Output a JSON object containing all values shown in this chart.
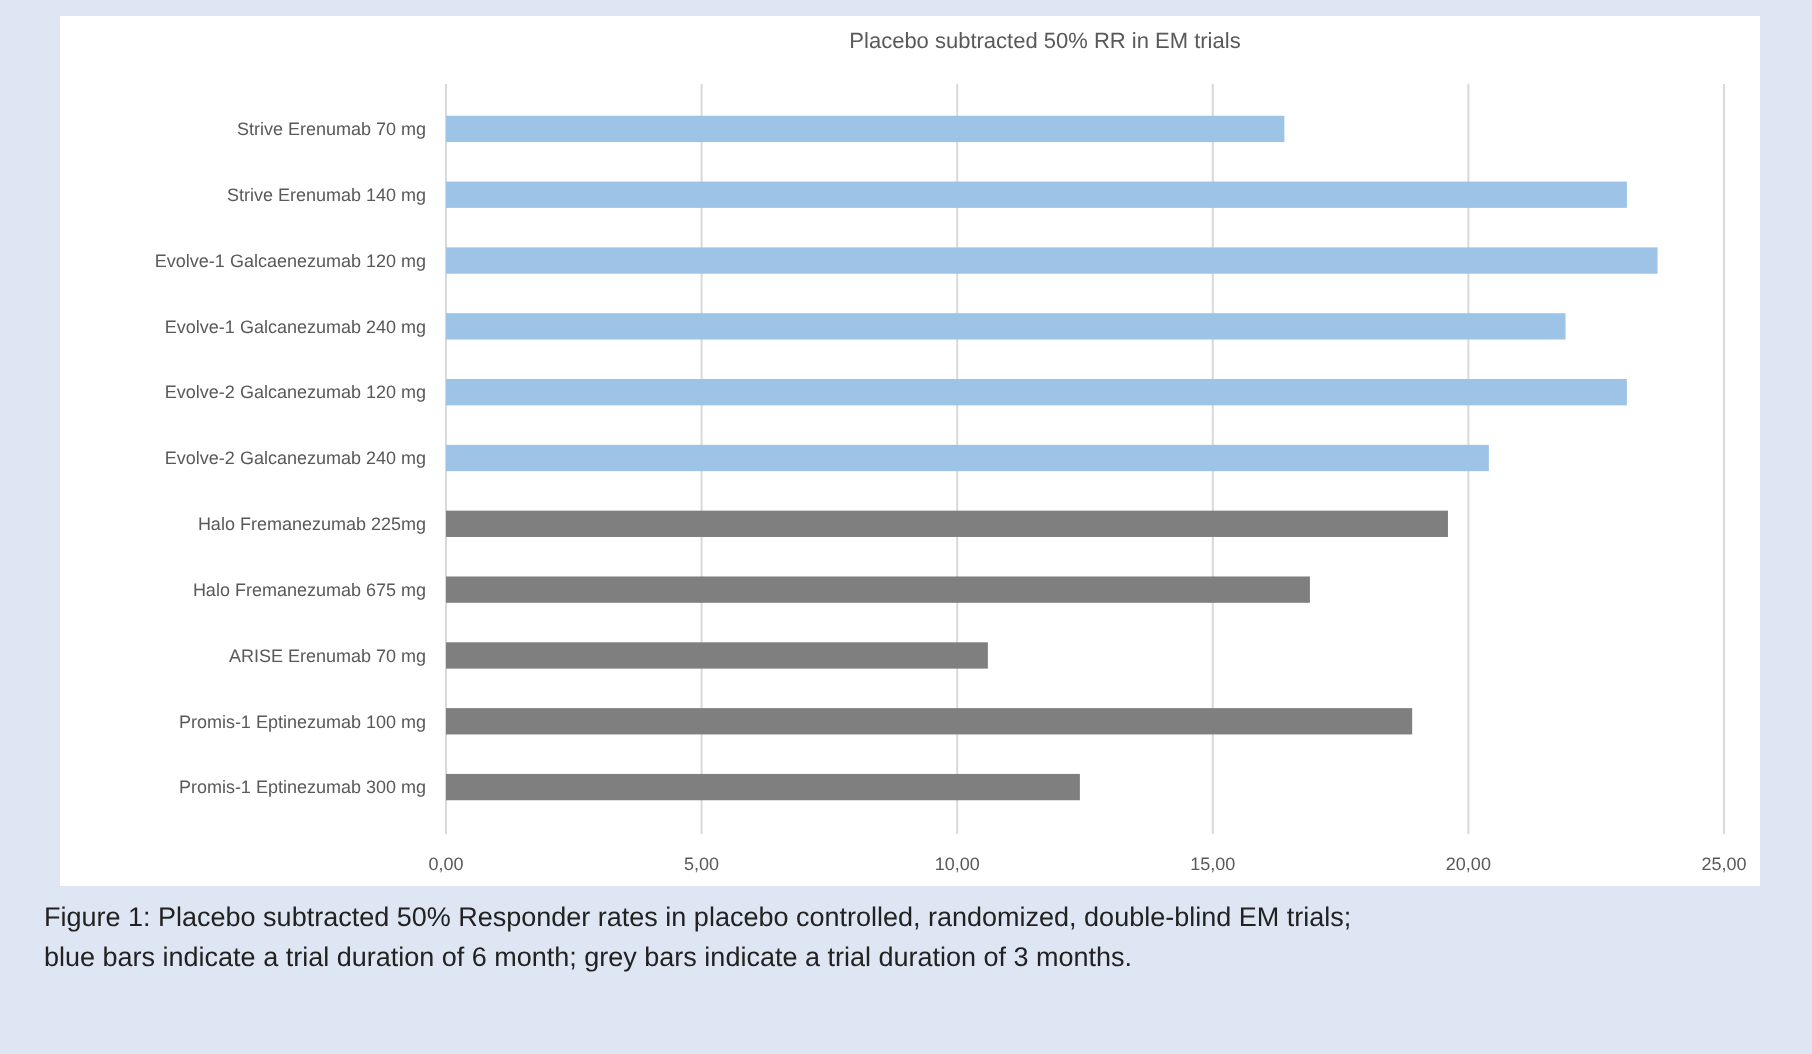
{
  "chart_data": {
    "type": "bar",
    "orientation": "horizontal",
    "title": "Placebo subtracted 50% RR in EM trials",
    "categories": [
      "Strive Erenumab 70 mg",
      "Strive Erenumab 140  mg",
      "Evolve-1 Galcaenezumab 120 mg",
      "Evolve-1  Galcanezumab 240 mg",
      "Evolve-2 Galcanezumab 120 mg",
      "Evolve-2  Galcanezumab 240 mg",
      "Halo Fremanezumab 225mg",
      "Halo Fremanezumab 675 mg",
      "ARISE Erenumab 70 mg",
      "Promis-1 Eptinezumab 100 mg",
      "Promis-1 Eptinezumab 300 mg"
    ],
    "values": [
      16.4,
      23.1,
      23.7,
      21.9,
      23.1,
      20.4,
      19.6,
      16.9,
      10.6,
      18.9,
      12.4
    ],
    "colors": [
      "#9dc3e6",
      "#9dc3e6",
      "#9dc3e6",
      "#9dc3e6",
      "#9dc3e6",
      "#9dc3e6",
      "#7f7f7f",
      "#7f7f7f",
      "#7f7f7f",
      "#7f7f7f",
      "#7f7f7f"
    ],
    "xlim": [
      0,
      25
    ],
    "xticks": [
      {
        "value": 0,
        "label": "0,00"
      },
      {
        "value": 5,
        "label": "5,00"
      },
      {
        "value": 10,
        "label": "10,00"
      },
      {
        "value": 15,
        "label": "15,00"
      },
      {
        "value": 20,
        "label": "20,00"
      },
      {
        "value": 25,
        "label": "25,00"
      }
    ],
    "grid": "x",
    "annotations": [
      "Figure 1: Placebo subtracted 50% Responder rates in placebo controlled, randomized, double-blind EM trials; blue bars indicate a trial duration of 6 month; grey bars indicate a trial duration of 3 months."
    ]
  }
}
